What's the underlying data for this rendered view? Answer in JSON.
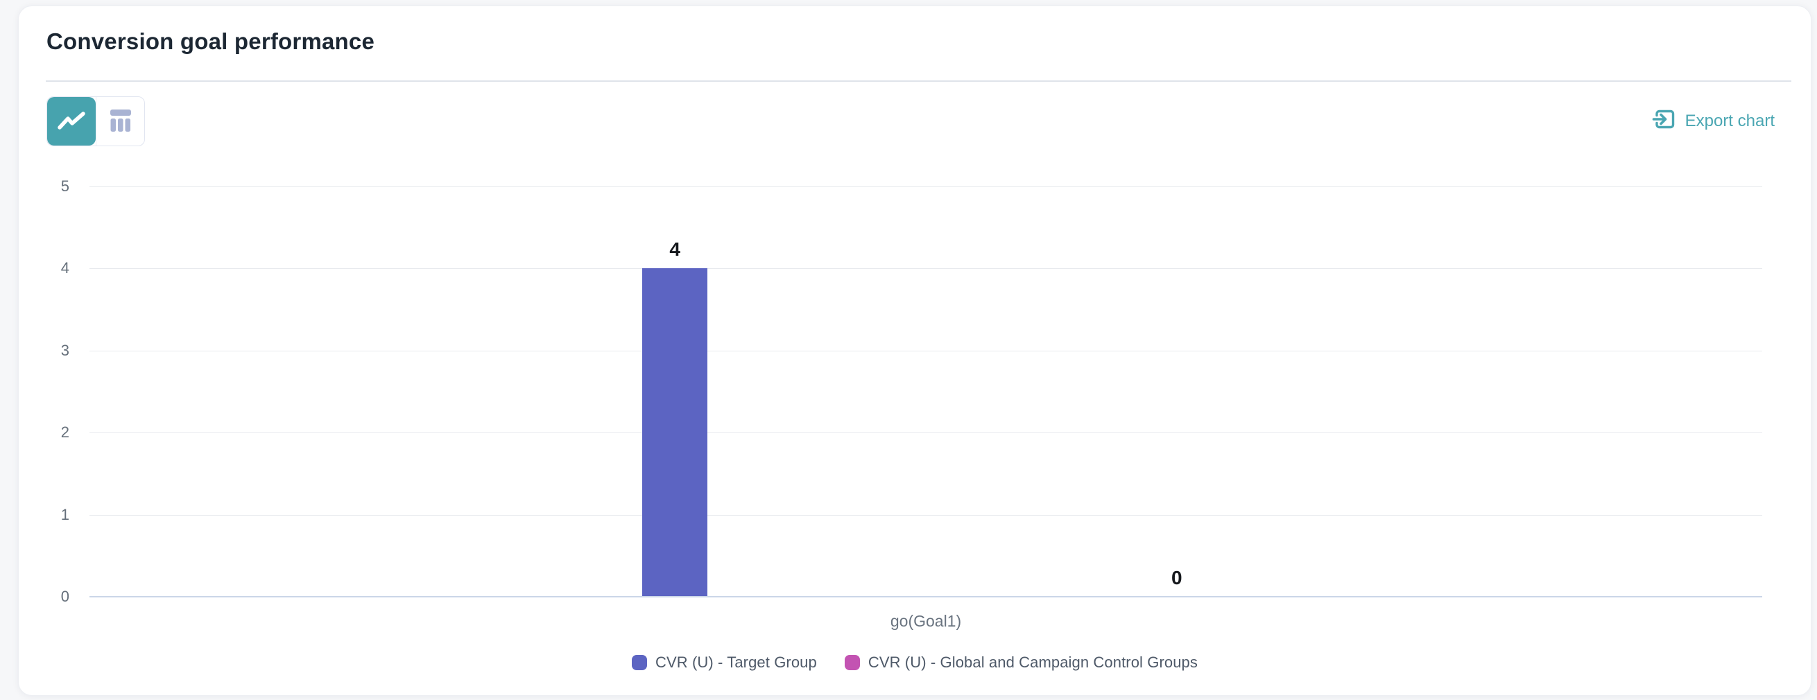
{
  "header": {
    "title": "Conversion goal performance"
  },
  "toolbar": {
    "view_toggle": {
      "chart_view": {
        "icon": "line-chart-icon",
        "active": true
      },
      "table_view": {
        "icon": "table-icon",
        "active": false
      }
    },
    "export_label": "Export chart"
  },
  "colors": {
    "accent_teal": "#47A3AE",
    "link_teal": "#4AA6B2",
    "series_purple": "#5C64C2",
    "series_pink": "#C353B2",
    "inactive_icon": "#A9B3D3",
    "gridline": "#E8EAEE",
    "axis_line": "#CBD6E8"
  },
  "chart_data": {
    "type": "bar",
    "title": "Conversion goal performance",
    "categories": [
      "go(Goal1)"
    ],
    "series": [
      {
        "name": "CVR (U) - Target Group",
        "color": "#5C64C2",
        "values": [
          4
        ]
      },
      {
        "name": "CVR (U) - Global and Campaign Control Groups",
        "color": "#C353B2",
        "values": [
          0
        ]
      }
    ],
    "ylim": [
      0,
      5
    ],
    "yticks": [
      0,
      1,
      2,
      3,
      4,
      5
    ],
    "xlabel": "",
    "ylabel": "",
    "grid": true,
    "data_labels": [
      4,
      0
    ],
    "legend_position": "bottom"
  }
}
